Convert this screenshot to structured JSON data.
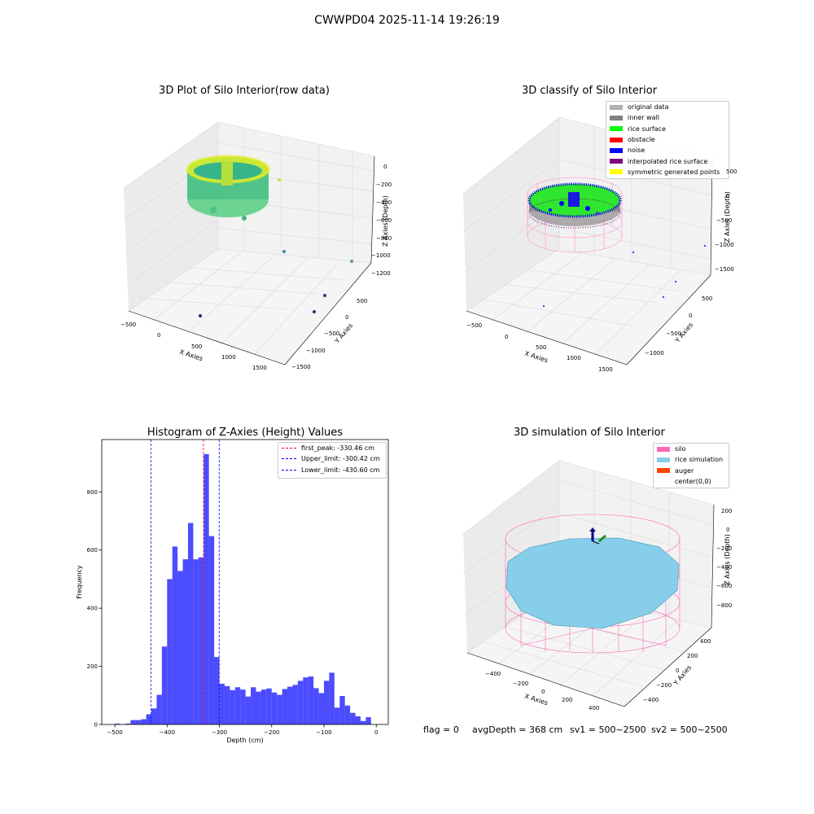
{
  "figure": {
    "suptitle": "CWWPD04 2025-11-14 19:26:19"
  },
  "panels": {
    "raw": {
      "title": "3D Plot of Silo Interior(row data)",
      "xlabel": "X Axies",
      "ylabel": "Y Axies",
      "zlabel": "Z Axies (Depth)",
      "xticks": [
        "−500",
        "0",
        "500",
        "1000",
        "1500"
      ],
      "yticks": [
        "500",
        "0",
        "−500",
        "−1000",
        "−1500"
      ],
      "zticks": [
        "0",
        "−200",
        "−400",
        "−600",
        "−800",
        "−1000",
        "−1200"
      ]
    },
    "classify": {
      "title": "3D classify of Silo Interior",
      "xlabel": "X Axies",
      "ylabel": "Y Axies",
      "zlabel": "Z Axies (Depth)",
      "xticks": [
        "−500",
        "0",
        "500",
        "1000",
        "1500"
      ],
      "yticks": [
        "500",
        "0",
        "−500",
        "−1000"
      ],
      "zticks": [
        "500",
        "0",
        "−500",
        "−1000",
        "−1500"
      ],
      "legend": [
        {
          "label": "original data",
          "color": "#b0b0b0"
        },
        {
          "label": "inner wall",
          "color": "#808080"
        },
        {
          "label": "rice surface",
          "color": "#00ff00"
        },
        {
          "label": "obstacle",
          "color": "#ff0000"
        },
        {
          "label": "noise",
          "color": "#0000ff"
        },
        {
          "label": "interpolated rice surface",
          "color": "#800080"
        },
        {
          "label": "symmetric generated points",
          "color": "#ffff00"
        }
      ]
    },
    "simulation": {
      "title": "3D simulation of Silo Interior",
      "xlabel": "X Axies",
      "ylabel": "Y Axies",
      "zlabel": "Z Axies (Depth)",
      "xticks": [
        "−400",
        "−200",
        "0",
        "200",
        "400"
      ],
      "yticks": [
        "400",
        "200",
        "0",
        "−200",
        "−400"
      ],
      "zticks": [
        "200",
        "0",
        "−200",
        "−400",
        "−600",
        "−800"
      ],
      "legend": [
        {
          "label": "silo",
          "color": "#ff69b4"
        },
        {
          "label": "rice simulation",
          "color": "#87ceeb"
        },
        {
          "label": "auger",
          "color": "#ff4500"
        },
        {
          "label": "center(0,0)",
          "color": "#ffffff"
        }
      ]
    }
  },
  "chart_data": [
    {
      "type": "bar",
      "title": "Histogram of Z-Axies (Height) Values",
      "xlabel": "Depth (cm)",
      "ylabel": "Frequency",
      "xlim": [
        -525,
        23
      ],
      "ylim": [
        0,
        980
      ],
      "xticks": [
        -500,
        -400,
        -300,
        -200,
        -100,
        0
      ],
      "yticks": [
        0,
        200,
        400,
        600,
        800
      ],
      "bar_color": "#0000ff",
      "bin_left_edges": [
        -500,
        -490,
        -480,
        -470,
        -460,
        -450,
        -440,
        -430,
        -420,
        -410,
        -400,
        -390,
        -380,
        -370,
        -360,
        -350,
        -340,
        -330,
        -320,
        -310,
        -300,
        -290,
        -280,
        -270,
        -260,
        -250,
        -240,
        -230,
        -220,
        -210,
        -200,
        -190,
        -180,
        -170,
        -160,
        -150,
        -140,
        -130,
        -120,
        -110,
        -100,
        -90,
        -80,
        -70,
        -60,
        -50,
        -40,
        -30,
        -20,
        -10,
        0
      ],
      "bin_width": 10,
      "values": [
        3,
        0,
        3,
        15,
        15,
        18,
        35,
        55,
        102,
        268,
        500,
        612,
        528,
        568,
        693,
        568,
        575,
        930,
        648,
        232,
        140,
        132,
        118,
        128,
        120,
        96,
        128,
        113,
        120,
        124,
        110,
        102,
        122,
        130,
        136,
        150,
        162,
        165,
        125,
        108,
        150,
        178,
        58,
        98,
        65,
        40,
        28,
        12,
        25,
        0,
        0
      ],
      "vlines": [
        {
          "label": "first_peak: -330.46 cm",
          "x": -330.46,
          "color": "#ff0000"
        },
        {
          "label": "Upper_limit: -300.42 cm",
          "x": -300.42,
          "color": "#0000ff"
        },
        {
          "label": "Lower_limit: -430.60 cm",
          "x": -430.6,
          "color": "#0000ff"
        }
      ],
      "legend_placement": "upper right"
    }
  ],
  "footer": {
    "flag": "flag = 0",
    "avg_depth": "avgDepth = 368 cm",
    "sv1": "sv1 = 500~2500",
    "sv2": "sv2 = 500~2500"
  }
}
